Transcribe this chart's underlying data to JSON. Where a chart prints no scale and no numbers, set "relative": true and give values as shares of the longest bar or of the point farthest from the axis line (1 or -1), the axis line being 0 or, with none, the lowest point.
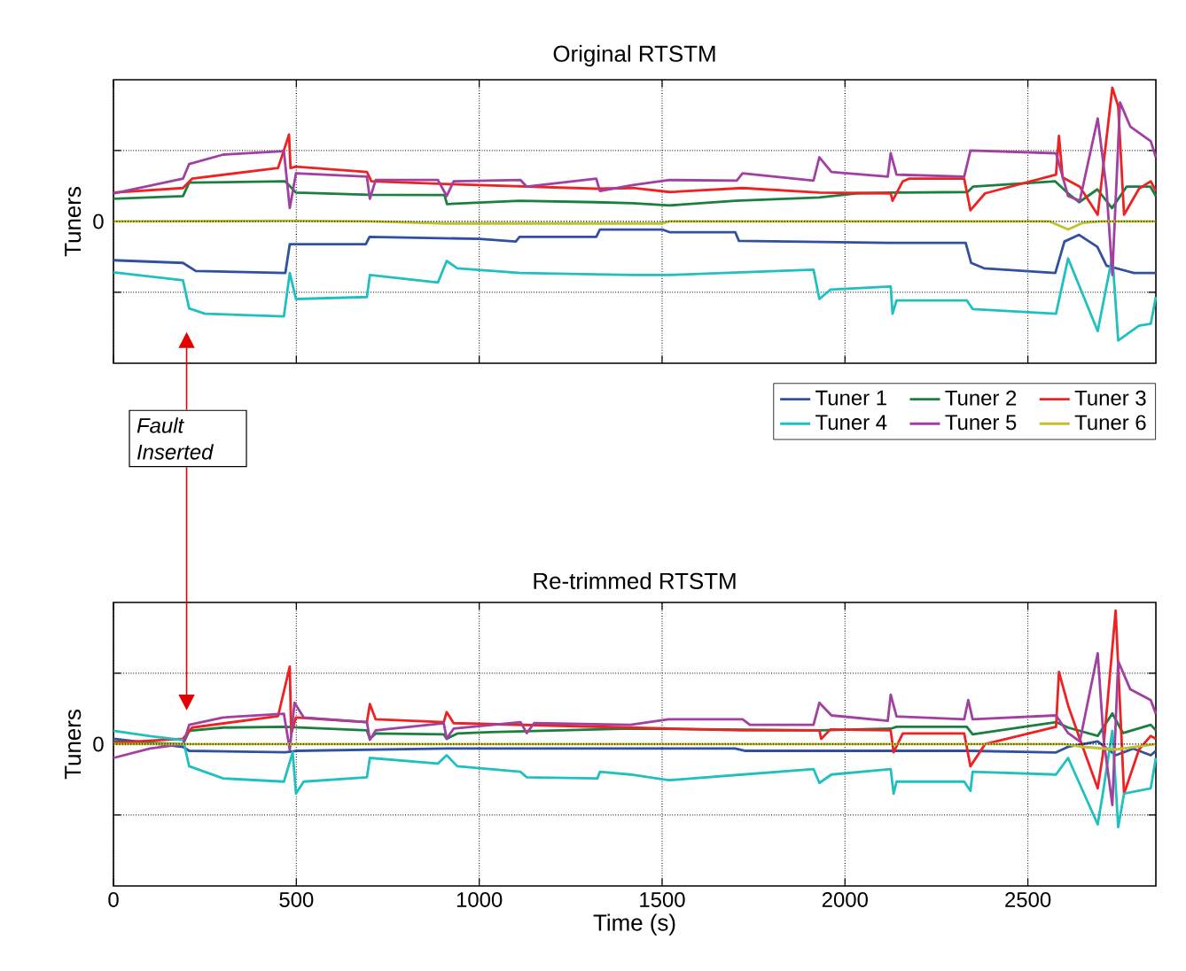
{
  "chart_data": [
    {
      "type": "line",
      "title": "Original RTSTM",
      "ylabel": "Tuners",
      "relative": true,
      "xlim": [
        0,
        2850
      ],
      "xticks": [
        0,
        500,
        1000,
        1500,
        2000,
        2500
      ],
      "ref_lines": [
        {
          "axis": "y",
          "value": 0,
          "label": "0",
          "line_style": "dotted"
        }
      ],
      "grid": true,
      "legend": "bottom",
      "tick_labels": "y",
      "annotations": [
        {
          "text": "Fault Inserted",
          "x": 200
        }
      ],
      "series": [
        {
          "name": "Tuner 1",
          "color": "#3050a0",
          "x": [
            0,
            190,
            225,
            470,
            482,
            690,
            700,
            1000,
            1100,
            1110,
            1320,
            1330,
            1500,
            1520,
            1700,
            1710,
            2120,
            2330,
            2345,
            2380,
            2575,
            2600,
            2640,
            2690,
            2715,
            2790,
            2850
          ],
          "values": [
            -0.29,
            -0.31,
            -0.37,
            -0.385,
            -0.17,
            -0.17,
            -0.115,
            -0.13,
            -0.15,
            -0.115,
            -0.115,
            -0.06,
            -0.06,
            -0.08,
            -0.08,
            -0.145,
            -0.16,
            -0.16,
            -0.31,
            -0.35,
            -0.385,
            -0.15,
            -0.1,
            -0.19,
            -0.33,
            -0.385,
            -0.385
          ]
        },
        {
          "name": "Tuner 2",
          "color": "#1a8040",
          "x": [
            0,
            190,
            207,
            470,
            499,
            700,
            905,
            912,
            1110,
            1320,
            1420,
            1520,
            1700,
            1930,
            2030,
            2125,
            2335,
            2350,
            2575,
            2610,
            2640,
            2690,
            2730,
            2770,
            2835,
            2850
          ],
          "values": [
            0.17,
            0.19,
            0.29,
            0.3,
            0.216,
            0.2,
            0.198,
            0.13,
            0.155,
            0.144,
            0.137,
            0.12,
            0.155,
            0.18,
            0.21,
            0.216,
            0.22,
            0.26,
            0.3,
            0.21,
            0.144,
            0.24,
            0.1,
            0.26,
            0.26,
            0.19
          ]
        },
        {
          "name": "Tuner 3",
          "color": "#ee2222",
          "x": [
            0,
            190,
            215,
            450,
            480,
            484,
            499,
            693,
            705,
            903,
            1320,
            1420,
            1520,
            1720,
            1930,
            2125,
            2130,
            2158,
            2175,
            2326,
            2343,
            2383,
            2577,
            2585,
            2595,
            2642,
            2691,
            2731,
            2747,
            2763,
            2804,
            2836,
            2850
          ],
          "values": [
            0.216,
            0.25,
            0.32,
            0.4,
            0.65,
            0.4,
            0.41,
            0.37,
            0.3,
            0.28,
            0.245,
            0.25,
            0.22,
            0.25,
            0.216,
            0.21,
            0.155,
            0.3,
            0.32,
            0.32,
            0.083,
            0.21,
            0.35,
            0.64,
            0.33,
            0.26,
            0.05,
            1.0,
            0.86,
            0.05,
            0.245,
            0.3,
            0.227
          ]
        },
        {
          "name": "Tuner 4",
          "color": "#20c0c0",
          "x": [
            0,
            190,
            207,
            250,
            466,
            482,
            499,
            693,
            701,
            887,
            911,
            940,
            1113,
            1420,
            1520,
            1914,
            1930,
            1960,
            2125,
            2130,
            2141,
            2333,
            2349,
            2577,
            2610,
            2691,
            2731,
            2747,
            2804,
            2836,
            2850
          ],
          "values": [
            -0.38,
            -0.44,
            -0.65,
            -0.69,
            -0.71,
            -0.385,
            -0.58,
            -0.565,
            -0.4,
            -0.457,
            -0.295,
            -0.35,
            -0.385,
            -0.4,
            -0.4,
            -0.36,
            -0.58,
            -0.51,
            -0.486,
            -0.69,
            -0.59,
            -0.59,
            -0.655,
            -0.69,
            -0.277,
            -0.82,
            -0.26,
            -0.89,
            -0.78,
            -0.765,
            -0.565
          ]
        },
        {
          "name": "Tuner 5",
          "color": "#a040a0",
          "x": [
            0,
            190,
            207,
            300,
            466,
            482,
            499,
            693,
            701,
            717,
            887,
            911,
            930,
            1113,
            1130,
            1320,
            1330,
            1420,
            1520,
            1704,
            1720,
            1914,
            1930,
            1963,
            2117,
            2125,
            2141,
            2326,
            2343,
            2577,
            2610,
            2642,
            2691,
            2715,
            2731,
            2752,
            2780,
            2836,
            2850
          ],
          "values": [
            0.21,
            0.32,
            0.43,
            0.5,
            0.525,
            0.1,
            0.36,
            0.335,
            0.17,
            0.31,
            0.31,
            0.19,
            0.3,
            0.31,
            0.26,
            0.32,
            0.227,
            0.273,
            0.31,
            0.306,
            0.36,
            0.306,
            0.48,
            0.37,
            0.335,
            0.51,
            0.35,
            0.335,
            0.53,
            0.51,
            0.19,
            0.155,
            0.77,
            0.245,
            -0.4,
            0.89,
            0.71,
            0.6,
            0.48
          ]
        },
        {
          "name": "Tuner 6",
          "color": "#c0c030",
          "x": [
            0,
            480,
            700,
            910,
            1500,
            1520,
            2560,
            2610,
            2650,
            2700,
            2850
          ],
          "values": [
            0,
            0.005,
            0,
            -0.015,
            -0.015,
            0,
            0,
            -0.06,
            -0.01,
            0,
            0
          ]
        }
      ]
    },
    {
      "type": "line",
      "title": "Re-trimmed RTSTM",
      "xlabel": "Time (s)",
      "ylabel": "Tuners",
      "relative": true,
      "xlim": [
        0,
        2850
      ],
      "xticks": [
        0,
        500,
        1000,
        1500,
        2000,
        2500
      ],
      "ref_lines": [
        {
          "axis": "y",
          "value": 0,
          "label": "0",
          "line_style": "dotted"
        }
      ],
      "grid": true,
      "series": [
        {
          "color": "#3050a0",
          "x": [
            0,
            190,
            207,
            470,
            499,
            911,
            1700,
            1728,
            2343,
            2577,
            2610,
            2691,
            2740,
            2788,
            2836,
            2850
          ],
          "values": [
            0.04,
            -0.02,
            -0.05,
            -0.06,
            -0.05,
            -0.033,
            -0.033,
            -0.05,
            -0.05,
            -0.062,
            -0.02,
            0.02,
            -0.083,
            -0.033,
            -0.083,
            -0.05
          ]
        },
        {
          "color": "#1a8040",
          "x": [
            0,
            190,
            207,
            300,
            466,
            693,
            701,
            717,
            903,
            911,
            940,
            1030,
            1413,
            1930,
            2125,
            2141,
            2333,
            2349,
            2577,
            2610,
            2691,
            2731,
            2760,
            2836,
            2850
          ],
          "values": [
            0.02,
            0,
            0.1,
            0.124,
            0.13,
            0.103,
            0.04,
            0.08,
            0.074,
            0.04,
            0.08,
            0.09,
            0.116,
            0.103,
            0.116,
            0.13,
            0.13,
            0.074,
            0.165,
            0.124,
            0.062,
            0.23,
            0.083,
            0.145,
            0.103
          ]
        },
        {
          "color": "#ee2222",
          "x": [
            0,
            190,
            215,
            450,
            482,
            486,
            499,
            693,
            701,
            717,
            903,
            911,
            930,
            1413,
            1720,
            1930,
            1935,
            1960,
            2125,
            2133,
            2158,
            2326,
            2343,
            2383,
            2577,
            2585,
            2610,
            2642,
            2691,
            2705,
            2740,
            2763,
            2804,
            2836,
            2850
          ],
          "values": [
            0.01,
            0.04,
            0.124,
            0.21,
            0.58,
            0.08,
            0.2,
            0.165,
            0.3,
            0.186,
            0.165,
            0.24,
            0.157,
            0.124,
            0.103,
            0.103,
            0.04,
            0.11,
            0.103,
            -0.06,
            0.08,
            0.08,
            -0.165,
            0,
            0.13,
            0.54,
            0.29,
            0.04,
            -0.33,
            -0.08,
            1.0,
            -0.37,
            -0.04,
            0.062,
            0.04
          ]
        },
        {
          "color": "#20c0c0",
          "x": [
            0,
            100,
            191,
            207,
            300,
            466,
            490,
            499,
            520,
            693,
            701,
            887,
            911,
            940,
            1113,
            1130,
            1323,
            1330,
            1413,
            1518,
            1720,
            1914,
            1930,
            1963,
            2125,
            2133,
            2141,
            2326,
            2343,
            2349,
            2577,
            2610,
            2691,
            2705,
            2731,
            2747,
            2763,
            2836,
            2850
          ],
          "values": [
            0.1,
            0.06,
            0.03,
            -0.165,
            -0.256,
            -0.28,
            -0.06,
            -0.37,
            -0.28,
            -0.248,
            -0.103,
            -0.145,
            -0.083,
            -0.165,
            -0.207,
            -0.248,
            -0.256,
            -0.207,
            -0.227,
            -0.27,
            -0.227,
            -0.186,
            -0.29,
            -0.227,
            -0.186,
            -0.37,
            -0.28,
            -0.28,
            -0.35,
            -0.207,
            -0.227,
            -0.103,
            -0.6,
            -0.37,
            0.1,
            -0.62,
            -0.37,
            -0.33,
            -0.103
          ]
        },
        {
          "color": "#a040a0",
          "x": [
            0,
            100,
            191,
            207,
            300,
            466,
            482,
            495,
            520,
            693,
            701,
            717,
            903,
            911,
            930,
            1113,
            1130,
            1150,
            1413,
            1518,
            1720,
            1740,
            1914,
            1930,
            1963,
            2117,
            2125,
            2141,
            2326,
            2337,
            2349,
            2577,
            2610,
            2642,
            2691,
            2707,
            2731,
            2747,
            2780,
            2836,
            2850
          ],
          "values": [
            -0.103,
            -0.033,
            0,
            0.145,
            0.2,
            0.227,
            -0.041,
            0.31,
            0.2,
            0.165,
            0.033,
            0.103,
            0.157,
            0.041,
            0.116,
            0.165,
            0.083,
            0.157,
            0.145,
            0.186,
            0.186,
            0.145,
            0.145,
            0.31,
            0.215,
            0.174,
            0.37,
            0.207,
            0.186,
            0.33,
            0.186,
            0.215,
            0.083,
            0.02,
            0.68,
            0.04,
            -0.455,
            0.62,
            0.41,
            0.33,
            0.227
          ]
        },
        {
          "color": "#c0c030",
          "x": [
            0,
            500,
            1000,
            1500,
            2000,
            2600,
            2650,
            2740,
            2850
          ],
          "values": [
            0,
            0,
            0,
            0,
            0,
            0,
            -0.02,
            -0.04,
            0
          ]
        }
      ]
    }
  ]
}
